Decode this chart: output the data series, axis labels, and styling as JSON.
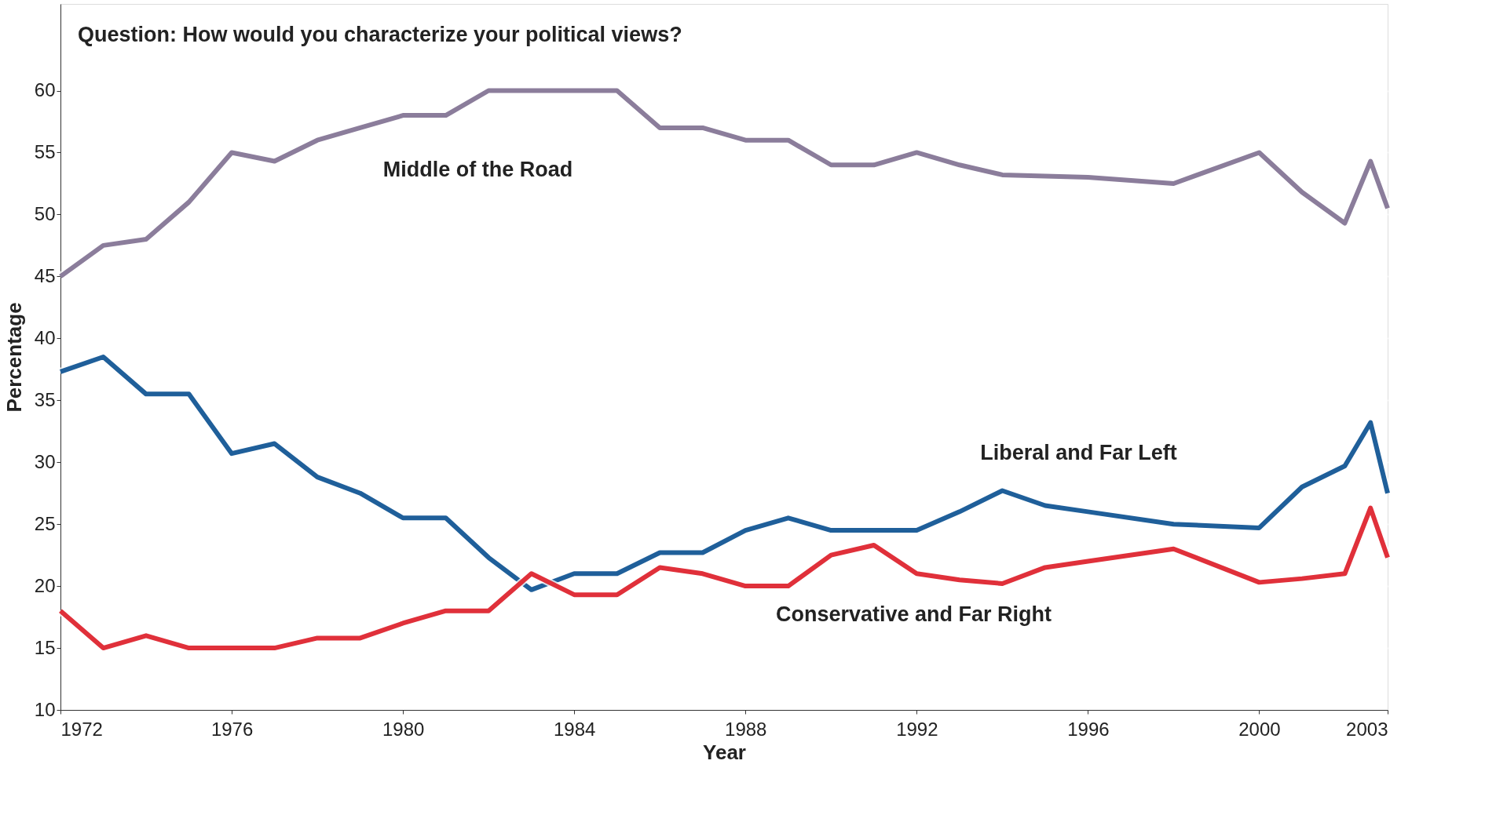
{
  "chart_data": {
    "type": "line",
    "xlabel": "Year",
    "ylabel": "Percentage",
    "annotations": [
      "Question: How would you characterize your political views?"
    ],
    "x": [
      1972,
      1973,
      1974,
      1975,
      1976,
      1977,
      1978,
      1979,
      1980,
      1981,
      1982,
      1983,
      1984,
      1985,
      1986,
      1987,
      1988,
      1989,
      1990,
      1991,
      1992,
      1993,
      1994,
      1995,
      1996,
      1998,
      2000,
      2001,
      2002,
      2002.6,
      2003
    ],
    "series": [
      {
        "name": "Middle of the Road",
        "color": "#8b7d9b",
        "values": [
          45,
          47.5,
          48,
          51,
          55,
          54.3,
          56,
          57,
          58,
          58,
          60,
          60,
          60,
          60,
          57,
          57,
          56,
          56,
          54,
          54,
          55,
          54,
          53.2,
          53.1,
          53,
          52.5,
          55,
          51.8,
          49.3,
          54.3,
          50.5
        ]
      },
      {
        "name": "Liberal and Far Left",
        "color": "#1f5f9a",
        "values": [
          37.3,
          38.5,
          35.5,
          35.5,
          30.7,
          31.5,
          28.8,
          27.5,
          25.5,
          25.5,
          22.3,
          19.7,
          21,
          21,
          22.7,
          22.7,
          24.5,
          25.5,
          24.5,
          24.5,
          24.5,
          26,
          27.7,
          26.5,
          26,
          25,
          24.7,
          28,
          29.7,
          33.2,
          27.5
        ]
      },
      {
        "name": "Conservative and Far Right",
        "color": "#e0303a",
        "values": [
          18,
          15,
          16,
          15,
          15,
          15,
          15.8,
          15.8,
          17,
          18,
          18,
          21,
          19.3,
          19.3,
          21.5,
          21,
          20,
          20,
          22.5,
          23.3,
          21,
          20.5,
          20.2,
          21.5,
          22,
          23,
          20.3,
          20.6,
          21,
          26.3,
          22.3
        ]
      }
    ],
    "xlim": [
      1972,
      2003
    ],
    "xticks": [
      1972,
      1976,
      1980,
      1984,
      1988,
      1992,
      1996,
      2000,
      2003
    ],
    "ylim": [
      10,
      67
    ],
    "yticks": [
      10,
      15,
      20,
      25,
      30,
      35,
      40,
      45,
      50,
      55,
      60
    ],
    "grid": "y",
    "marker": "none",
    "line_style": "solid"
  }
}
